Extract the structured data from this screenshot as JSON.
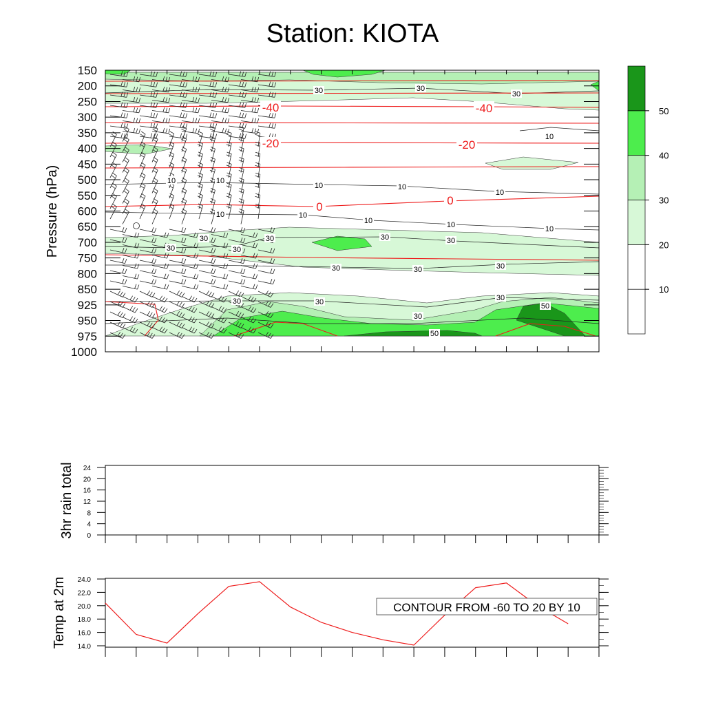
{
  "title": "Station: KIOTA",
  "chart_data": [
    {
      "type": "contour",
      "panel": "upper-air",
      "ylabel": "Pressure (hPa)",
      "y_ticks": [
        150,
        200,
        250,
        300,
        350,
        400,
        450,
        500,
        550,
        600,
        650,
        700,
        750,
        800,
        850,
        925,
        950,
        975,
        1000
      ],
      "x_tick_count": 17,
      "shaded_field_labels": [
        "10",
        "30",
        "50"
      ],
      "temperature_contours": [
        {
          "label": "-40",
          "pressure": 265
        },
        {
          "label": "-20",
          "pressure": 380
        },
        {
          "label": "0",
          "pressure": 580
        }
      ],
      "colorbar": {
        "levels": [
          10,
          20,
          30,
          40,
          50
        ],
        "labels": [
          "10",
          "20",
          "30",
          "40",
          "50"
        ],
        "colors": [
          "#ffffff",
          "#ffffff",
          "#d7f8d7",
          "#b5f0b5",
          "#4ded4d",
          "#1a961a"
        ]
      }
    },
    {
      "type": "line",
      "panel": "rain",
      "ylabel": "3hr rain total",
      "ylim": [
        0,
        24
      ],
      "y_ticks": [
        "0",
        "4",
        "8",
        "12",
        "16",
        "20",
        "24"
      ],
      "values": []
    },
    {
      "type": "line",
      "panel": "temp",
      "ylabel": "Temp at 2m",
      "ylim": [
        14.0,
        24.0
      ],
      "y_ticks": [
        "14.0",
        "16.0",
        "18.0",
        "20.0",
        "22.0",
        "24.0"
      ],
      "x": [
        0,
        1,
        2,
        3,
        4,
        5,
        6,
        7,
        8,
        9,
        10,
        11,
        12,
        13,
        14,
        15
      ],
      "values": [
        20.4,
        15.7,
        14.4,
        18.8,
        22.9,
        23.6,
        19.8,
        17.5,
        16.0,
        14.9,
        14.1,
        18.6,
        22.7,
        23.4,
        20.0,
        17.3
      ],
      "color": "#ff0000",
      "annotation": "CONTOUR FROM -60 TO 20 BY 10"
    }
  ]
}
